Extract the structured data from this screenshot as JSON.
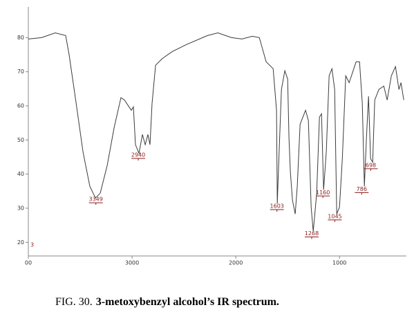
{
  "chart_data": {
    "type": "line",
    "caption_label": "FIG. 30.",
    "caption_text": "3-metoxybenzyl alcohol’s IR spectrum.",
    "corner_label": "3",
    "color": "#3a3a3a",
    "x": [
      4000,
      3873,
      3740,
      3640,
      3607,
      3540,
      3473,
      3407,
      3353,
      3307,
      3240,
      3173,
      3107,
      3073,
      3007,
      2987,
      2967,
      2933,
      2900,
      2873,
      2847,
      2827,
      2807,
      2773,
      2707,
      2607,
      2473,
      2273,
      2173,
      2040,
      1940,
      1840,
      1773,
      1707,
      1640,
      1607,
      1600,
      1593,
      1560,
      1527,
      1500,
      1487,
      1473,
      1453,
      1427,
      1407,
      1380,
      1353,
      1327,
      1300,
      1273,
      1253,
      1220,
      1193,
      1173,
      1153,
      1127,
      1100,
      1073,
      1047,
      1027,
      1000,
      973,
      940,
      907,
      873,
      840,
      807,
      780,
      760,
      740,
      720,
      700,
      680,
      660,
      620,
      573,
      540,
      500,
      460,
      427,
      407,
      380
    ],
    "values": [
      79.6,
      80,
      81.4,
      80.6,
      75,
      61,
      46.5,
      36.4,
      33,
      34.4,
      42.5,
      53.6,
      62.4,
      61.7,
      58.7,
      59.7,
      48.6,
      46.1,
      51.6,
      48.6,
      51.6,
      48.6,
      60.7,
      71.9,
      73.9,
      76,
      78,
      80.6,
      81.4,
      80,
      79.6,
      80.4,
      80,
      72.9,
      70.9,
      58.7,
      31.3,
      37.4,
      64.8,
      70.3,
      67.9,
      50.6,
      40.4,
      32.3,
      28.3,
      36.4,
      54.6,
      56.7,
      58.7,
      55.7,
      30.3,
      23.2,
      34.4,
      56.7,
      57.7,
      35.4,
      46.5,
      68.8,
      70.9,
      64.8,
      28.3,
      30.3,
      44.5,
      68.8,
      66.8,
      69.9,
      72.9,
      72.9,
      60.7,
      36.4,
      50.6,
      62.8,
      44.5,
      43.5,
      61.7,
      64.8,
      65.8,
      61.7,
      68.8,
      71.5,
      64.8,
      66.8,
      61.7
    ],
    "peaks": [
      {
        "x": 3349,
        "y": 33
      },
      {
        "x": 2940,
        "y": 46
      },
      {
        "x": 1603,
        "y": 31
      },
      {
        "x": 1268,
        "y": 23
      },
      {
        "x": 1160,
        "y": 35
      },
      {
        "x": 1045,
        "y": 28
      },
      {
        "x": 786,
        "y": 36
      },
      {
        "x": 698,
        "y": 43
      }
    ],
    "xlim": [
      4000,
      355
    ],
    "xticks": [
      {
        "value": 4000,
        "label": "00"
      },
      3000,
      2000,
      1000
    ],
    "ylim": [
      16,
      89
    ],
    "yticks": [
      20,
      30,
      40,
      50,
      60,
      70,
      80
    ]
  }
}
